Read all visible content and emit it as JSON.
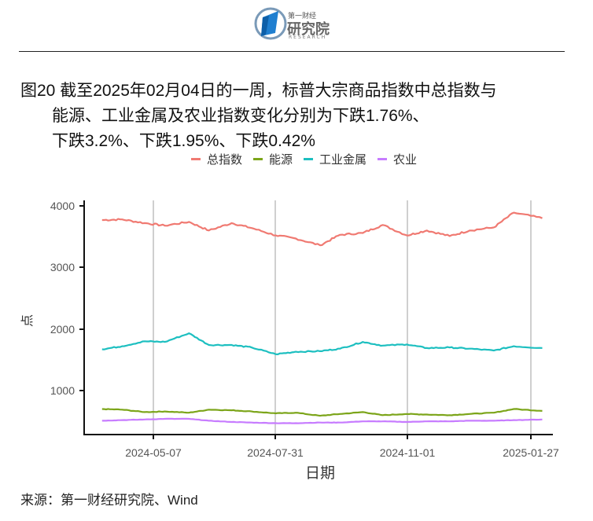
{
  "header": {
    "logo": {
      "icon": "first-financial-research-logo-icon",
      "text_top": "第一财经",
      "text_main": "研究院",
      "text_sub": "RESEARCH"
    }
  },
  "title": {
    "line1": "图20  截至2025年02月04日的一周，标普大宗商品指数中总指数与",
    "line2": "能源、工业金属及农业指数变化分别为下跌1.76%、",
    "line3": "下跌3.2%、下跌1.95%、下跌0.42%"
  },
  "legend": [
    {
      "label": "总指数",
      "color": "#F07A72"
    },
    {
      "label": "能源",
      "color": "#7CA51A"
    },
    {
      "label": "工业金属",
      "color": "#1DBFC0"
    },
    {
      "label": "农业",
      "color": "#C77CFF"
    }
  ],
  "source": "来源：第一财经研究院、Wind",
  "chart_data": {
    "type": "line",
    "title": "截至2025年02月04日的一周，标普大宗商品指数中总指数与能源、工业金属及农业指数变化分别为下跌1.76%、下跌3.2%、下跌1.95%、下跌0.42%",
    "xlabel": "日期",
    "ylabel": "点",
    "x_ticks": [
      "2024-05-07",
      "2024-07-31",
      "2024-11-01",
      "2025-01-27"
    ],
    "y_ticks": [
      1000,
      2000,
      3000,
      4000
    ],
    "ylim": [
      300,
      4000
    ],
    "xlim": [
      "2024-03-25",
      "2025-02-04"
    ],
    "grid": "vertical major gridlines at x ticks",
    "legend_position": "top",
    "x": [
      "2024-04-01",
      "2024-04-15",
      "2024-05-01",
      "2024-05-15",
      "2024-06-01",
      "2024-06-15",
      "2024-07-01",
      "2024-07-15",
      "2024-08-01",
      "2024-08-15",
      "2024-09-01",
      "2024-09-15",
      "2024-10-01",
      "2024-10-15",
      "2024-11-01",
      "2024-11-15",
      "2024-12-01",
      "2024-12-15",
      "2025-01-01",
      "2025-01-15",
      "2025-02-04"
    ],
    "series": [
      {
        "name": "总指数",
        "color": "#F07A72",
        "values": [
          3770,
          3780,
          3720,
          3680,
          3740,
          3600,
          3720,
          3640,
          3520,
          3470,
          3360,
          3530,
          3560,
          3690,
          3520,
          3600,
          3510,
          3600,
          3650,
          3890,
          3800
        ]
      },
      {
        "name": "能源",
        "color": "#7CA51A",
        "values": [
          700,
          690,
          650,
          660,
          640,
          690,
          680,
          660,
          630,
          640,
          590,
          620,
          650,
          600,
          620,
          610,
          600,
          620,
          640,
          700,
          670
        ]
      },
      {
        "name": "工业金属",
        "color": "#1DBFC0",
        "values": [
          1670,
          1720,
          1800,
          1790,
          1930,
          1740,
          1740,
          1700,
          1590,
          1630,
          1640,
          1680,
          1790,
          1730,
          1750,
          1690,
          1700,
          1680,
          1650,
          1720,
          1690
        ]
      },
      {
        "name": "农业",
        "color": "#C77CFF",
        "values": [
          510,
          520,
          530,
          540,
          540,
          510,
          490,
          480,
          470,
          470,
          480,
          480,
          500,
          500,
          490,
          500,
          500,
          510,
          510,
          520,
          530
        ]
      }
    ]
  }
}
